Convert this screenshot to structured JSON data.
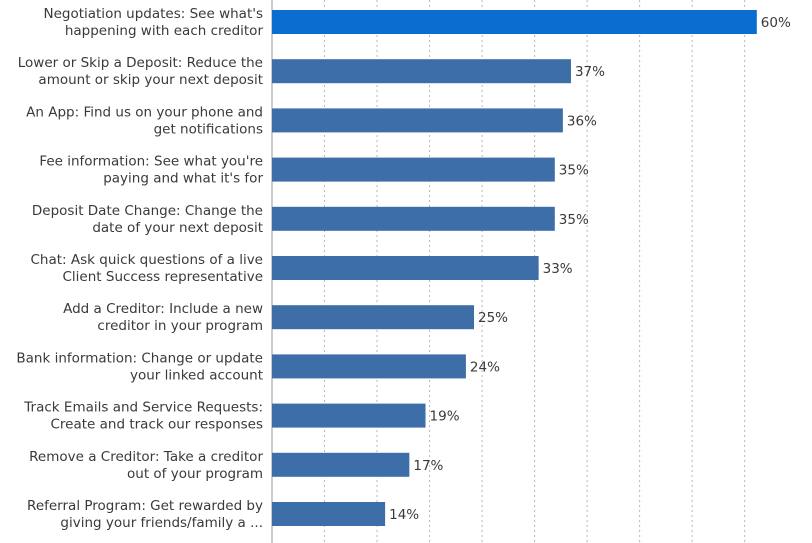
{
  "chart_data": {
    "type": "bar",
    "orientation": "horizontal",
    "title": "",
    "xlabel": "",
    "ylabel": "",
    "xlim": [
      0,
      62
    ],
    "grid": true,
    "value_suffix": "%",
    "highlight_color": "#0a6ed1",
    "bar_color": "#3d6ea8",
    "categories": [
      [
        "Negotiation updates: See what's",
        "happening with each creditor"
      ],
      [
        "Lower or Skip a Deposit: Reduce the",
        "amount or skip your next deposit"
      ],
      [
        "An App: Find us on your phone and",
        "get notifications"
      ],
      [
        "Fee information: See what you're",
        "paying and what it's for"
      ],
      [
        "Deposit Date Change: Change the",
        "date of your next deposit"
      ],
      [
        "Chat: Ask quick questions of a live",
        "Client Success representative"
      ],
      [
        "Add a Creditor: Include a new",
        "creditor in your program"
      ],
      [
        "Bank information: Change or update",
        "your linked account"
      ],
      [
        "Track Emails and Service Requests:",
        "Create and track our responses"
      ],
      [
        "Remove a Creditor: Take a creditor",
        "out of your program"
      ],
      [
        "Referral Program: Get rewarded by",
        "giving your friends/family a ..."
      ]
    ],
    "values": [
      60,
      37,
      36,
      35,
      35,
      33,
      25,
      24,
      19,
      17,
      14
    ],
    "highlighted_index": 0
  }
}
